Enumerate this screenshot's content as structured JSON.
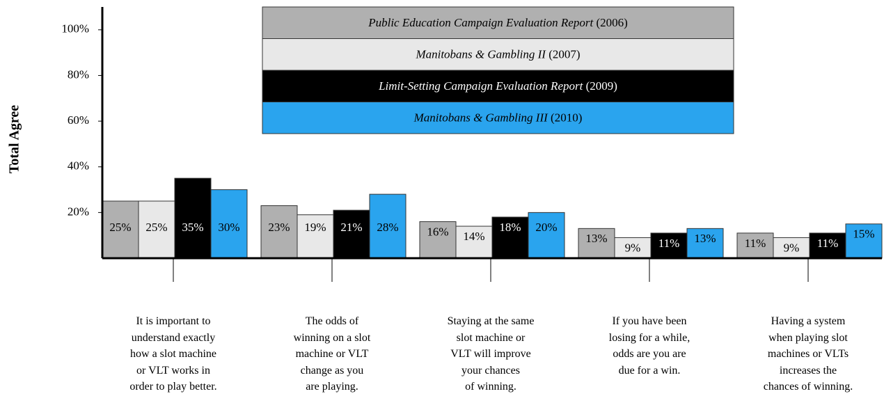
{
  "chart_data": {
    "type": "bar",
    "ylabel": "Total Agree",
    "categories": [
      "It is important to\nunderstand exactly\nhow a slot machine\nor VLT works in\norder to play better.",
      "The odds of\nwinning on a slot\nmachine or VLT\nchange as you\nare playing.",
      "Staying at the same\nslot machine or\nVLT will improve\nyour chances\nof winning.",
      "If you have been\nlosing for a while,\nodds are you are\ndue for a win.",
      "Having a system\nwhen playing slot\nmachines or VLTs\nincreases the\nchances of winning."
    ],
    "series": [
      {
        "name": "Public Education Campaign Evaluation Report (2006)",
        "color": "#b0b0b0",
        "values": [
          25,
          23,
          16,
          13,
          11
        ],
        "value_labels": [
          "25%",
          "23%",
          "16%",
          "13%",
          "11%"
        ]
      },
      {
        "name": "Manitobans & Gambling II (2007)",
        "color": "#e8e8e8",
        "values": [
          25,
          19,
          14,
          9,
          9
        ],
        "value_labels": [
          "25%",
          "19%",
          "14%",
          "9%",
          "9%"
        ]
      },
      {
        "name": "Limit-Setting Campaign Evaluation Report (2009)",
        "color": "#000000",
        "values": [
          35,
          21,
          18,
          11,
          11
        ],
        "value_labels": [
          "35%",
          "21%",
          "18%",
          "11%",
          "11%"
        ]
      },
      {
        "name": "Manitobans & Gambling III (2010)",
        "color": "#2aa4ee",
        "values": [
          30,
          28,
          20,
          13,
          15
        ],
        "value_labels": [
          "30%",
          "28%",
          "20%",
          "13%",
          "15%"
        ]
      }
    ],
    "ylim": [
      0,
      110
    ],
    "yticks": [
      {
        "value": 20,
        "label": "20%"
      },
      {
        "value": 40,
        "label": "40%"
      },
      {
        "value": 60,
        "label": "60%"
      },
      {
        "value": 80,
        "label": "80%"
      },
      {
        "value": 100,
        "label": "100%"
      }
    ],
    "legend": "top"
  }
}
